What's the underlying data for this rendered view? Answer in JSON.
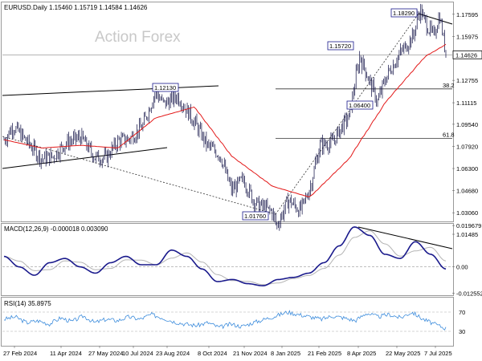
{
  "header": {
    "price_title": "EURUSD.Daily  1.15460 1.15719 1.14584 1.14626",
    "watermark": "Action Forex",
    "macd_title": "MACD(12,26,9) -0.000018 0.003090",
    "rsi_title": "RSI(14) 35.8975"
  },
  "colors": {
    "candles": "#0a0a40",
    "ema": "#e31a1a",
    "macd": "#1a1a8c",
    "signal": "#b4b4b4",
    "rsi": "#3c8cdc",
    "price_badge": "#000000"
  },
  "chart_data": [
    {
      "type": "candlestick",
      "title": "EURUSD.Daily  1.15460 1.15719 1.14584 1.14626",
      "ylim": [
        1.012,
        1.193
      ],
      "y_ticks": [
        "1.17595",
        "1.15975",
        "1.14626",
        "1.12755",
        "1.11115",
        "1.09540",
        "1.07920",
        "1.06300",
        "1.04680",
        "1.03060",
        "1.01485"
      ],
      "x_ticks": [
        "27 Feb 2024",
        "11 Apr 2024",
        "27 May 2024",
        "10 Jul 2024",
        "23 Aug 2024",
        "8 Oct 2024",
        "21 Nov 2024",
        "8 Jan 2025",
        "21 Feb 2025",
        "8 Apr 2025",
        "22 May 2025",
        "7 Jul 2025"
      ],
      "close_path": [
        {
          "x": "27 Feb 2024",
          "y": 1.084
        },
        {
          "x": "8 Mar 2024",
          "y": 1.094
        },
        {
          "x": "20 Mar 2024",
          "y": 1.086
        },
        {
          "x": "11 Apr 2024",
          "y": 1.07
        },
        {
          "x": "25 Apr 2024",
          "y": 1.072
        },
        {
          "x": "10 May 2024",
          "y": 1.082
        },
        {
          "x": "27 May 2024",
          "y": 1.086
        },
        {
          "x": "13 Jun 2024",
          "y": 1.071
        },
        {
          "x": "26 Jun 2024",
          "y": 1.071
        },
        {
          "x": "10 Jul 2024",
          "y": 1.083
        },
        {
          "x": "24 Jul 2024",
          "y": 1.085
        },
        {
          "x": "8 Aug 2024",
          "y": 1.094
        },
        {
          "x": "23 Aug 2024",
          "y": 1.119
        },
        {
          "x": "2 Sep 2024",
          "y": 1.11
        },
        {
          "x": "18 Sep 2024",
          "y": 1.116
        },
        {
          "x": "1 Oct 2024",
          "y": 1.104
        },
        {
          "x": "8 Oct 2024",
          "y": 1.097
        },
        {
          "x": "23 Oct 2024",
          "y": 1.08
        },
        {
          "x": "7 Nov 2024",
          "y": 1.073
        },
        {
          "x": "21 Nov 2024",
          "y": 1.047
        },
        {
          "x": "5 Dec 2024",
          "y": 1.055
        },
        {
          "x": "18 Dec 2024",
          "y": 1.038
        },
        {
          "x": "8 Jan 2025",
          "y": 1.031
        },
        {
          "x": "13 Jan 2025",
          "y": 1.021
        },
        {
          "x": "27 Jan 2025",
          "y": 1.04
        },
        {
          "x": "10 Feb 2025",
          "y": 1.032
        },
        {
          "x": "21 Feb 2025",
          "y": 1.048
        },
        {
          "x": "5 Mar 2025",
          "y": 1.08
        },
        {
          "x": "20 Mar 2025",
          "y": 1.082
        },
        {
          "x": "3 Apr 2025",
          "y": 1.097
        },
        {
          "x": "8 Apr 2025",
          "y": 1.1
        },
        {
          "x": "21 Apr 2025",
          "y": 1.145
        },
        {
          "x": "12 May 2025",
          "y": 1.112
        },
        {
          "x": "22 May 2025",
          "y": 1.13
        },
        {
          "x": "5 Jun 2025",
          "y": 1.145
        },
        {
          "x": "23 Jun 2025",
          "y": 1.16
        },
        {
          "x": "1 Jul 2025",
          "y": 1.18
        },
        {
          "x": "7 Jul 2025",
          "y": 1.17
        },
        {
          "x": "17 Jul 2025",
          "y": 1.16
        },
        {
          "x": "24 Jul 2025",
          "y": 1.175
        },
        {
          "x": "1 Aug 2025",
          "y": 1.146
        }
      ],
      "ema_path": [
        {
          "x": "27 Feb 2024",
          "y": 1.084
        },
        {
          "x": "11 Apr 2024",
          "y": 1.078
        },
        {
          "x": "27 May 2024",
          "y": 1.08
        },
        {
          "x": "10 Jul 2024",
          "y": 1.078
        },
        {
          "x": "23 Aug 2024",
          "y": 1.1
        },
        {
          "x": "8 Oct 2024",
          "y": 1.108
        },
        {
          "x": "21 Nov 2024",
          "y": 1.072
        },
        {
          "x": "8 Jan 2025",
          "y": 1.05
        },
        {
          "x": "21 Feb 2025",
          "y": 1.042
        },
        {
          "x": "8 Apr 2025",
          "y": 1.07
        },
        {
          "x": "22 May 2025",
          "y": 1.112
        },
        {
          "x": "7 Jul 2025",
          "y": 1.145
        },
        {
          "x": "1 Aug 2025",
          "y": 1.154
        }
      ],
      "annotations": [
        {
          "label": "1.12130",
          "x": "2 Oct 2024",
          "y": 1.1213
        },
        {
          "label": "1.01760",
          "x": "13 Jan 2025",
          "y": 1.0176
        },
        {
          "label": "1.06400",
          "x": "12 May 2025",
          "y": 1.064
        },
        {
          "label": "1.15720",
          "x": "21 Apr 2025",
          "y": 1.1572
        },
        {
          "label": "1.18290",
          "x": "1 Jul 2025",
          "y": 1.1829
        }
      ],
      "retracement_levels": [
        {
          "label": "38.2",
          "y": 1.1213
        },
        {
          "label": "61.8",
          "y": 1.085
        }
      ],
      "last_price": 1.14626
    },
    {
      "type": "line",
      "title": "MACD(12,26,9) -0.000018 0.003090",
      "ylim": [
        -0.0135,
        0.0205
      ],
      "y_ticks": [
        "0.019679",
        "0.00",
        "-0.012552"
      ],
      "series": [
        {
          "name": "MACD",
          "values": [
            0.005,
            0.0,
            -0.004,
            0.002,
            0.004,
            0.0,
            -0.003,
            0.002,
            0.005,
            0.001,
            0.001,
            0.008,
            0.005,
            -0.001,
            -0.007,
            -0.006,
            -0.008,
            -0.009,
            -0.006,
            -0.005,
            -0.003,
            0.002,
            0.01,
            0.019,
            0.015,
            0.006,
            0.004,
            0.012,
            0.006,
            -0.001
          ]
        }
      ]
    },
    {
      "type": "line",
      "title": "RSI(14) 35.8975",
      "ylim": [
        0,
        100
      ],
      "y_ticks": [
        "70",
        "30"
      ],
      "series": [
        {
          "name": "RSI(14)",
          "values": [
            55,
            60,
            48,
            52,
            45,
            58,
            50,
            62,
            48,
            55,
            52,
            60,
            55,
            65,
            58,
            50,
            45,
            42,
            48,
            38,
            45,
            40,
            48,
            55,
            62,
            70,
            65,
            60,
            55,
            62,
            58,
            52,
            68,
            60,
            65,
            58,
            70,
            55,
            45,
            36
          ]
        }
      ]
    }
  ]
}
